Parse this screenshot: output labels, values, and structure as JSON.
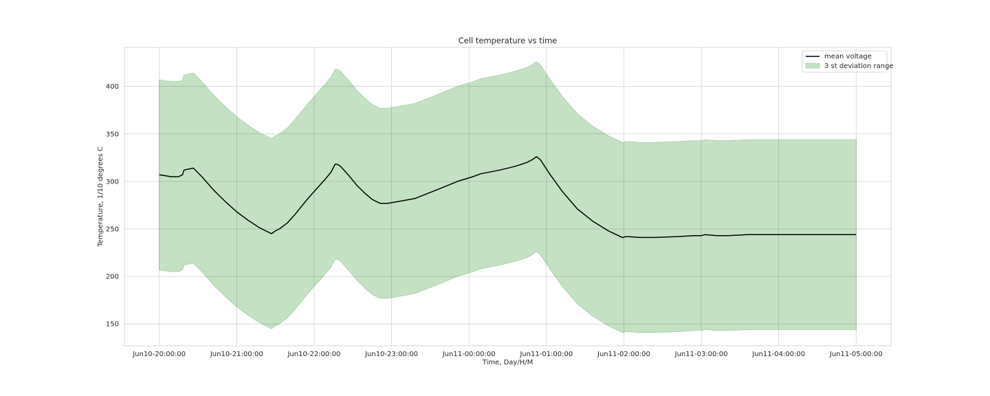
{
  "chart_data": {
    "type": "area",
    "title": "Cell temperature vs time",
    "xlabel": "Time, Day/H/M",
    "ylabel": "Temperature, 1/10 degrees C",
    "x_ticks": [
      {
        "hour": 0,
        "label": "Jun10-20:00:00"
      },
      {
        "hour": 1,
        "label": "Jun10-21:00:00"
      },
      {
        "hour": 2,
        "label": "Jun10-22:00:00"
      },
      {
        "hour": 3,
        "label": "Jun10-23:00:00"
      },
      {
        "hour": 4,
        "label": "Jun11-00:00:00"
      },
      {
        "hour": 5,
        "label": "Jun11-01:00:00"
      },
      {
        "hour": 6,
        "label": "Jun11-02:00:00"
      },
      {
        "hour": 7,
        "label": "Jun11-03:00:00"
      },
      {
        "hour": 8,
        "label": "Jun11-04:00:00"
      },
      {
        "hour": 9,
        "label": "Jun11-05:00:00"
      }
    ],
    "y_ticks": [
      150,
      200,
      250,
      300,
      350,
      400
    ],
    "xlim": [
      -0.45,
      9.45
    ],
    "ylim": [
      127,
      441
    ],
    "grid": true,
    "legend_position": "top-right",
    "colors": {
      "mean_line": "#000000",
      "band_fill": "#c4e1c4",
      "band_edge": "#a7cfa7",
      "grid": "#d3d3d3"
    },
    "series": [
      {
        "name": "mean voltage",
        "kind": "line",
        "x": [
          0,
          0.08,
          0.15,
          0.25,
          0.3,
          0.32,
          0.44,
          0.55,
          0.7,
          0.85,
          1.0,
          1.15,
          1.3,
          1.45,
          1.5,
          1.55,
          1.65,
          1.75,
          1.85,
          1.93,
          2.05,
          2.15,
          2.22,
          2.27,
          2.3,
          2.34,
          2.45,
          2.55,
          2.65,
          2.75,
          2.8,
          2.85,
          2.95,
          3.1,
          3.3,
          3.55,
          3.85,
          4.05,
          4.15,
          4.4,
          4.6,
          4.75,
          4.82,
          4.87,
          4.92,
          5.05,
          5.2,
          5.4,
          5.6,
          5.8,
          5.98,
          6.0,
          6.02,
          6.05,
          6.2,
          6.4,
          6.7,
          6.9,
          7.0,
          7.05,
          7.2,
          7.35,
          7.6,
          8.0,
          8.5,
          9.0
        ],
        "values": [
          307,
          306,
          305,
          305,
          307,
          312,
          314,
          305,
          291,
          279,
          268,
          259,
          251,
          245,
          248,
          250,
          256,
          265,
          275,
          283,
          294,
          303,
          310,
          318,
          318,
          316,
          306,
          296,
          288,
          281,
          279,
          277,
          277,
          279,
          282,
          290,
          300,
          305,
          308,
          312,
          316,
          320,
          323,
          326,
          323,
          307,
          290,
          271,
          258,
          248,
          241,
          241,
          242,
          242,
          241,
          241,
          242,
          243,
          243,
          244,
          243,
          243,
          244,
          244,
          244,
          244
        ]
      },
      {
        "name": "3 st deviation range",
        "kind": "band",
        "x": [
          0,
          0.08,
          0.15,
          0.25,
          0.3,
          0.32,
          0.44,
          0.55,
          0.7,
          0.85,
          1.0,
          1.15,
          1.3,
          1.45,
          1.5,
          1.55,
          1.65,
          1.75,
          1.85,
          1.93,
          2.05,
          2.15,
          2.22,
          2.27,
          2.3,
          2.34,
          2.45,
          2.55,
          2.65,
          2.75,
          2.8,
          2.85,
          2.95,
          3.1,
          3.3,
          3.55,
          3.85,
          4.05,
          4.15,
          4.4,
          4.6,
          4.75,
          4.82,
          4.87,
          4.92,
          5.05,
          5.2,
          5.4,
          5.6,
          5.8,
          5.98,
          6.0,
          6.02,
          6.05,
          6.2,
          6.4,
          6.7,
          6.9,
          7.0,
          7.05,
          7.2,
          7.35,
          7.6,
          8.0,
          8.5,
          9.0
        ],
        "lower": [
          207,
          206,
          205,
          205,
          207,
          212,
          214,
          205,
          191,
          179,
          168,
          159,
          151,
          145,
          148,
          150,
          156,
          165,
          175,
          183,
          194,
          203,
          210,
          218,
          218,
          216,
          206,
          196,
          188,
          181,
          179,
          177,
          177,
          179,
          182,
          190,
          200,
          205,
          208,
          212,
          216,
          220,
          223,
          226,
          223,
          207,
          190,
          171,
          158,
          148,
          141,
          141,
          142,
          142,
          141,
          141,
          142,
          143,
          143,
          144,
          143,
          143,
          144,
          144,
          144,
          144
        ],
        "upper": [
          407,
          406,
          405,
          405,
          407,
          412,
          414,
          405,
          391,
          379,
          368,
          359,
          351,
          345,
          348,
          350,
          356,
          365,
          375,
          383,
          394,
          403,
          410,
          418,
          418,
          416,
          406,
          396,
          388,
          381,
          379,
          377,
          377,
          379,
          382,
          390,
          400,
          405,
          408,
          412,
          416,
          420,
          423,
          426,
          423,
          407,
          390,
          371,
          358,
          348,
          341,
          341,
          342,
          342,
          341,
          341,
          342,
          343,
          343,
          344,
          343,
          343,
          344,
          344,
          344,
          344
        ]
      }
    ]
  }
}
